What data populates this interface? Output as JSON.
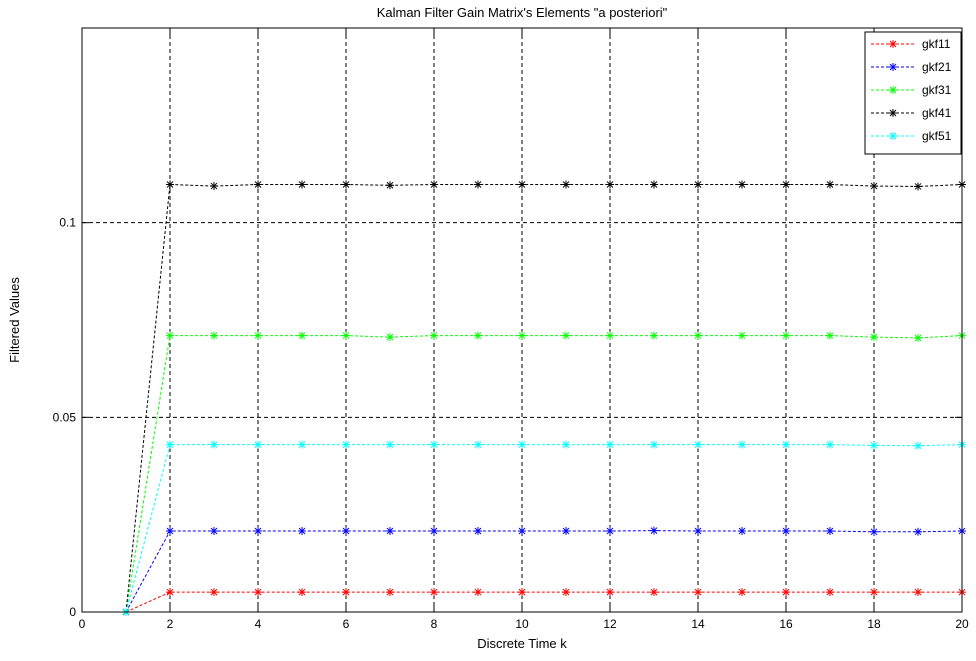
{
  "chart_data": {
    "type": "line",
    "title": "Kalman Filter Gain Matrix's Elements \"a posteriori\"",
    "xlabel": "Discrete Time k",
    "ylabel": "Filtered Values",
    "xlim": [
      0,
      20
    ],
    "ylim": [
      0,
      0.15
    ],
    "xticks": [
      0,
      2,
      4,
      6,
      8,
      10,
      12,
      14,
      16,
      18,
      20
    ],
    "xtick_labels": [
      "0",
      "2",
      "4",
      "6",
      "8",
      "10",
      "12",
      "14",
      "16",
      "18",
      "20"
    ],
    "yticks": [
      0,
      0.05,
      0.1
    ],
    "ytick_labels": [
      "0",
      "0.05",
      "0.1"
    ],
    "grid": true,
    "grid_style": "dashed",
    "legend_position": "top-right",
    "marker": "*",
    "line_style": "dashed",
    "x": [
      1,
      2,
      3,
      4,
      5,
      6,
      7,
      8,
      9,
      10,
      11,
      12,
      13,
      14,
      15,
      16,
      17,
      18,
      19,
      20
    ],
    "series": [
      {
        "name": "gkf11",
        "color": "#ff0000",
        "values": [
          0,
          0.0051,
          0.0051,
          0.0051,
          0.0051,
          0.0051,
          0.0051,
          0.0051,
          0.0051,
          0.0051,
          0.0051,
          0.0051,
          0.0051,
          0.0051,
          0.0051,
          0.0051,
          0.0051,
          0.0051,
          0.0051,
          0.0051
        ]
      },
      {
        "name": "gkf21",
        "color": "#0000ff",
        "values": [
          0,
          0.0208,
          0.0208,
          0.0208,
          0.0208,
          0.0208,
          0.0208,
          0.0208,
          0.0208,
          0.0208,
          0.0208,
          0.0208,
          0.0209,
          0.0208,
          0.0208,
          0.0208,
          0.0208,
          0.0206,
          0.0206,
          0.0208
        ]
      },
      {
        "name": "gkf31",
        "color": "#00ff00",
        "values": [
          0,
          0.071,
          0.071,
          0.071,
          0.071,
          0.071,
          0.0706,
          0.071,
          0.071,
          0.071,
          0.071,
          0.071,
          0.071,
          0.071,
          0.071,
          0.071,
          0.071,
          0.0706,
          0.0704,
          0.071
        ]
      },
      {
        "name": "gkf41",
        "color": "#000000",
        "values": [
          0,
          0.1098,
          0.1094,
          0.1098,
          0.1098,
          0.1098,
          0.1096,
          0.1098,
          0.1098,
          0.1098,
          0.1098,
          0.1098,
          0.1098,
          0.1098,
          0.1098,
          0.1098,
          0.1098,
          0.1094,
          0.1093,
          0.1098
        ]
      },
      {
        "name": "gkf51",
        "color": "#00ffff",
        "values": [
          0,
          0.043,
          0.043,
          0.043,
          0.043,
          0.043,
          0.043,
          0.043,
          0.043,
          0.043,
          0.043,
          0.043,
          0.043,
          0.043,
          0.043,
          0.043,
          0.043,
          0.0428,
          0.0427,
          0.043
        ]
      }
    ]
  }
}
